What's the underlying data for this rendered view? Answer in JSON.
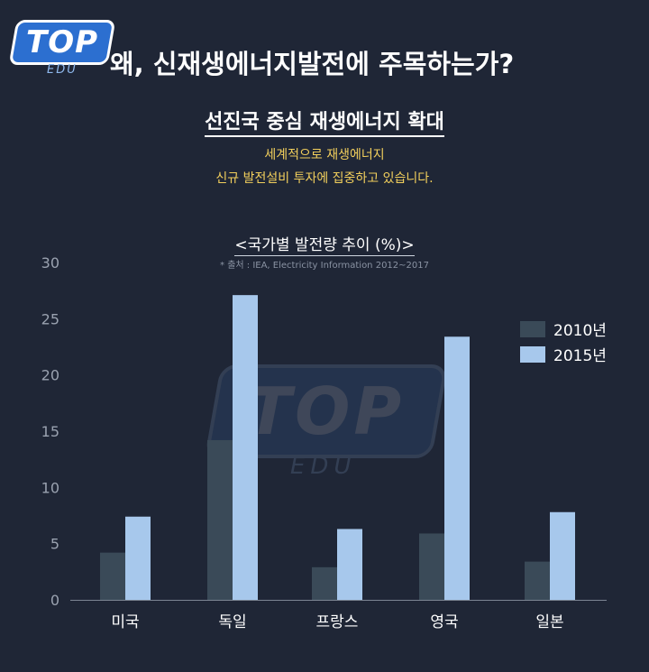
{
  "logo": {
    "main": "TOP",
    "sub": "EDU"
  },
  "header": {
    "title": "왜, 신재생에너지발전에 주목하는가?"
  },
  "section": {
    "title": "선진국 중심 재생에너지 확대",
    "desc_line1": "세계적으로 재생에너지",
    "desc_line2": "신규 발전설비 투자에 집중하고 있습니다."
  },
  "colors": {
    "background": "#1f2636",
    "series_2010": "#3a4a58",
    "series_2015": "#a7c8ec",
    "accent_text": "#f2cf5c"
  },
  "chart_data": {
    "type": "bar",
    "title": "<국가별 발전량 추이 (%)>",
    "source": "* 출처 : IEA, Electricity Information 2012~2017",
    "categories": [
      "미국",
      "독일",
      "프랑스",
      "영국",
      "일본"
    ],
    "series": [
      {
        "name": "2010년",
        "values": [
          4.2,
          14.2,
          2.9,
          5.9,
          3.4
        ]
      },
      {
        "name": "2015년",
        "values": [
          7.4,
          27.1,
          6.3,
          23.4,
          7.8
        ]
      }
    ],
    "ylim": [
      0,
      30
    ],
    "yticks": [
      0,
      5,
      10,
      15,
      20,
      25,
      30
    ],
    "grid": false,
    "legend": "top-right"
  }
}
